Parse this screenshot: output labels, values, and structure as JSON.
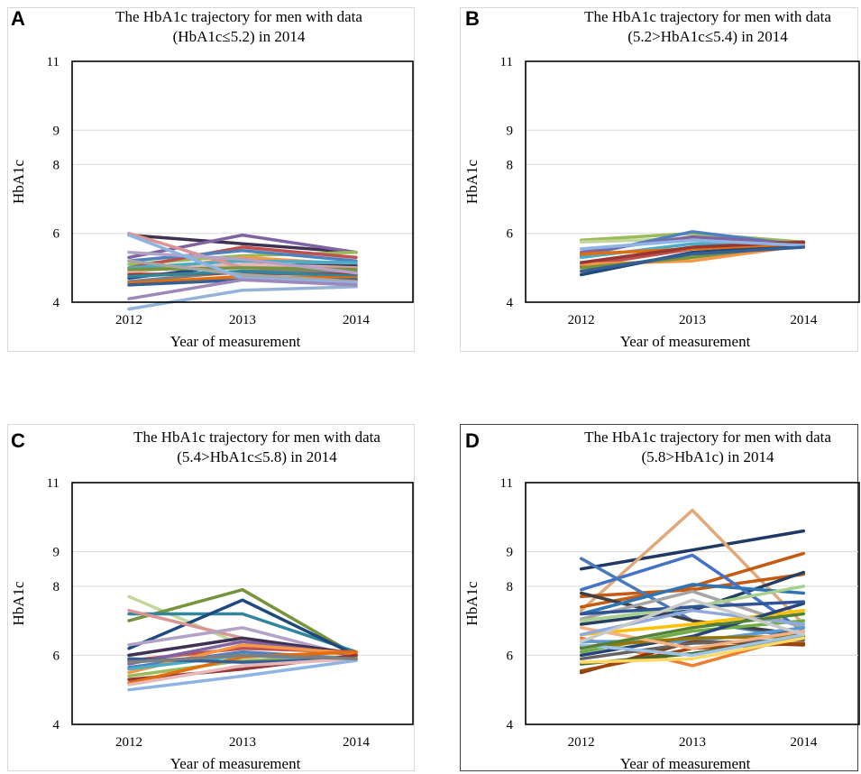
{
  "panels": [
    {
      "letter": "A",
      "title_line1": "The HbA1c trajectory for men with data",
      "title_line2": "(HbA1c≤5.2)  in 2014"
    },
    {
      "letter": "B",
      "title_line1": "The HbA1c trajectory for men with data",
      "title_line2": "(5.2>HbA1c≤5.4)  in 2014"
    },
    {
      "letter": "C",
      "title_line1": "The HbA1c trajectory for men with data",
      "title_line2": "(5.4>HbA1c≤5.8)  in 2014"
    },
    {
      "letter": "D",
      "title_line1": "The HbA1c trajectory for men with data",
      "title_line2": "(5.8>HbA1c)  in 2014"
    }
  ],
  "chart_data": [
    {
      "type": "line",
      "title": "The HbA1c trajectory for men with data (HbA1c≤5.2)  in 2014",
      "xlabel": "Year of measurement",
      "ylabel": "HbA1c",
      "categories": [
        "2012",
        "2013",
        "2014"
      ],
      "yticks": [
        "4",
        "6",
        "8",
        "9",
        "11"
      ],
      "ylim": [
        4,
        11
      ],
      "grid": true,
      "series": [
        {
          "color": "#403152",
          "values": [
            5.95,
            5.7,
            5.45
          ]
        },
        {
          "color": "#8064a2",
          "values": [
            5.3,
            5.95,
            5.45
          ]
        },
        {
          "color": "#9bbb59",
          "values": [
            5.1,
            5.35,
            5.45
          ]
        },
        {
          "color": "#c0504d",
          "values": [
            5.0,
            5.6,
            5.3
          ]
        },
        {
          "color": "#4f81bd",
          "values": [
            5.2,
            5.5,
            5.2
          ]
        },
        {
          "color": "#f79646",
          "values": [
            4.85,
            5.3,
            5.1
          ]
        },
        {
          "color": "#4bacc6",
          "values": [
            5.0,
            5.2,
            5.15
          ]
        },
        {
          "color": "#1f497d",
          "values": [
            4.7,
            5.1,
            5.05
          ]
        },
        {
          "color": "#e6b9b8",
          "values": [
            4.9,
            5.1,
            5.0
          ]
        },
        {
          "color": "#d99694",
          "values": [
            6.0,
            5.0,
            5.0
          ]
        },
        {
          "color": "#7f7f7f",
          "values": [
            4.6,
            4.9,
            4.9
          ]
        },
        {
          "color": "#77933c",
          "values": [
            4.95,
            5.0,
            4.95
          ]
        },
        {
          "color": "#953735",
          "values": [
            4.8,
            4.85,
            4.8
          ]
        },
        {
          "color": "#b3a2c7",
          "values": [
            5.45,
            5.25,
            4.85
          ]
        },
        {
          "color": "#31859c",
          "values": [
            4.75,
            4.9,
            4.75
          ]
        },
        {
          "color": "#e46c0a",
          "values": [
            4.55,
            4.75,
            4.7
          ]
        },
        {
          "color": "#376092",
          "values": [
            4.5,
            4.65,
            4.65
          ]
        },
        {
          "color": "#a6a6a6",
          "values": [
            5.2,
            4.8,
            4.6
          ]
        },
        {
          "color": "#8eb4e3",
          "values": [
            5.95,
            4.7,
            4.55
          ]
        },
        {
          "color": "#95b3d7",
          "values": [
            3.8,
            4.35,
            4.45
          ]
        },
        {
          "color": "#9e87b9",
          "values": [
            4.1,
            4.65,
            4.5
          ]
        }
      ]
    },
    {
      "type": "line",
      "title": "The HbA1c trajectory for men with data (5.2>HbA1c≤5.4)  in 2014",
      "xlabel": "Year of measurement",
      "ylabel": "HbA1c",
      "categories": [
        "2012",
        "2013",
        "2014"
      ],
      "yticks": [
        "4",
        "6",
        "8",
        "9",
        "11"
      ],
      "ylim": [
        4,
        11
      ],
      "grid": true,
      "series": [
        {
          "color": "#9bbb59",
          "values": [
            5.8,
            6.0,
            5.75
          ]
        },
        {
          "color": "#c3d69b",
          "values": [
            5.75,
            5.85,
            5.7
          ]
        },
        {
          "color": "#4f81bd",
          "values": [
            5.35,
            6.05,
            5.65
          ]
        },
        {
          "color": "#8064a2",
          "values": [
            5.45,
            5.9,
            5.7
          ]
        },
        {
          "color": "#c0504d",
          "values": [
            5.05,
            5.55,
            5.75
          ]
        },
        {
          "color": "#4bacc6",
          "values": [
            5.3,
            5.7,
            5.7
          ]
        },
        {
          "color": "#f79646",
          "values": [
            5.1,
            5.2,
            5.65
          ]
        },
        {
          "color": "#77933c",
          "values": [
            5.0,
            5.3,
            5.7
          ]
        },
        {
          "color": "#1f497d",
          "values": [
            4.8,
            5.45,
            5.65
          ]
        },
        {
          "color": "#e46c0a",
          "values": [
            5.4,
            5.55,
            5.7
          ]
        },
        {
          "color": "#953735",
          "values": [
            5.15,
            5.6,
            5.75
          ]
        },
        {
          "color": "#8eb4e3",
          "values": [
            5.55,
            5.8,
            5.65
          ]
        },
        {
          "color": "#376092",
          "values": [
            4.9,
            5.4,
            5.6
          ]
        }
      ]
    },
    {
      "type": "line",
      "title": "The HbA1c trajectory for men with data (5.4>HbA1c≤5.8)  in 2014",
      "xlabel": "Year of measurement",
      "ylabel": "HbA1c",
      "categories": [
        "2012",
        "2013",
        "2014"
      ],
      "yticks": [
        "4",
        "6",
        "8",
        "9",
        "11"
      ],
      "ylim": [
        4,
        11
      ],
      "grid": true,
      "series": [
        {
          "color": "#c3d69b",
          "values": [
            7.7,
            6.3,
            6.0
          ]
        },
        {
          "color": "#77933c",
          "values": [
            7.0,
            7.9,
            6.0
          ]
        },
        {
          "color": "#31859c",
          "values": [
            7.2,
            7.2,
            6.1
          ]
        },
        {
          "color": "#1f497d",
          "values": [
            6.2,
            7.6,
            6.0
          ]
        },
        {
          "color": "#d99694",
          "values": [
            7.3,
            6.5,
            6.0
          ]
        },
        {
          "color": "#b3a2c7",
          "values": [
            6.3,
            6.8,
            5.95
          ]
        },
        {
          "color": "#403152",
          "values": [
            6.0,
            6.5,
            6.05
          ]
        },
        {
          "color": "#c0504d",
          "values": [
            5.85,
            6.2,
            6.1
          ]
        },
        {
          "color": "#8064a2",
          "values": [
            5.75,
            6.4,
            6.0
          ]
        },
        {
          "color": "#4f81bd",
          "values": [
            5.65,
            6.1,
            5.9
          ]
        },
        {
          "color": "#f79646",
          "values": [
            5.5,
            6.3,
            6.05
          ]
        },
        {
          "color": "#9bbb59",
          "values": [
            5.4,
            5.85,
            5.95
          ]
        },
        {
          "color": "#953735",
          "values": [
            5.3,
            5.6,
            6.0
          ]
        },
        {
          "color": "#e46c0a",
          "values": [
            5.2,
            5.95,
            6.1
          ]
        },
        {
          "color": "#4bacc6",
          "values": [
            5.6,
            6.0,
            5.85
          ]
        },
        {
          "color": "#376092",
          "values": [
            5.9,
            5.8,
            5.9
          ]
        },
        {
          "color": "#e6b9b8",
          "values": [
            5.15,
            5.7,
            5.9
          ]
        },
        {
          "color": "#8eb4e3",
          "values": [
            5.0,
            5.4,
            5.85
          ]
        },
        {
          "color": "#7f7f7f",
          "values": [
            5.8,
            6.0,
            5.9
          ]
        }
      ]
    },
    {
      "type": "line",
      "title": "The HbA1c trajectory for men with data (5.8>HbA1c)  in 2014",
      "xlabel": "Year of measurement",
      "ylabel": "HbA1c",
      "categories": [
        "2012",
        "2013",
        "2014"
      ],
      "yticks": [
        "4",
        "6",
        "8",
        "9",
        "11"
      ],
      "ylim": [
        4,
        11
      ],
      "grid": true,
      "series": [
        {
          "color": "#1f3864",
          "values": [
            8.5,
            9.05,
            9.6
          ]
        },
        {
          "color": "#e1a97a",
          "values": [
            7.3,
            10.2,
            6.9
          ]
        },
        {
          "color": "#c55a11",
          "values": [
            7.4,
            8.0,
            8.95
          ]
        },
        {
          "color": "#c65911",
          "values": [
            7.7,
            7.9,
            8.35
          ]
        },
        {
          "color": "#243f60",
          "values": [
            6.9,
            7.3,
            8.4
          ]
        },
        {
          "color": "#4472c4",
          "values": [
            7.9,
            8.9,
            6.7
          ]
        },
        {
          "color": "#4a7ab8",
          "values": [
            8.8,
            7.0,
            6.5
          ]
        },
        {
          "color": "#404040",
          "values": [
            7.8,
            7.0,
            6.6
          ]
        },
        {
          "color": "#2e75b6",
          "values": [
            7.2,
            8.05,
            7.8
          ]
        },
        {
          "color": "#a5a5a5",
          "values": [
            7.05,
            7.85,
            6.8
          ]
        },
        {
          "color": "#ed7d31",
          "values": [
            6.5,
            5.7,
            6.6
          ]
        },
        {
          "color": "#ffc000",
          "values": [
            6.6,
            6.9,
            7.3
          ]
        },
        {
          "color": "#70ad47",
          "values": [
            6.1,
            6.7,
            7.0
          ]
        },
        {
          "color": "#5b9bd5",
          "values": [
            6.4,
            6.4,
            6.8
          ]
        },
        {
          "color": "#264478",
          "values": [
            6.0,
            6.55,
            7.5
          ]
        },
        {
          "color": "#843c0c",
          "values": [
            5.5,
            6.4,
            6.3
          ]
        },
        {
          "color": "#9e480e",
          "values": [
            5.55,
            6.2,
            6.35
          ]
        },
        {
          "color": "#636363",
          "values": [
            5.9,
            6.35,
            6.45
          ]
        },
        {
          "color": "#997300",
          "values": [
            6.25,
            6.5,
            6.55
          ]
        },
        {
          "color": "#43682b",
          "values": [
            5.75,
            6.05,
            6.55
          ]
        },
        {
          "color": "#9dc3e6",
          "values": [
            6.3,
            6.0,
            6.6
          ]
        },
        {
          "color": "#f4b183",
          "values": [
            6.8,
            6.2,
            6.7
          ]
        },
        {
          "color": "#ffd966",
          "values": [
            5.8,
            5.9,
            6.5
          ]
        },
        {
          "color": "#8faadc",
          "values": [
            6.6,
            7.3,
            6.9
          ]
        },
        {
          "color": "#a9d18e",
          "values": [
            7.0,
            7.4,
            8.0
          ]
        },
        {
          "color": "#2f5597",
          "values": [
            7.2,
            7.4,
            7.55
          ]
        },
        {
          "color": "#548235",
          "values": [
            6.2,
            6.8,
            7.2
          ]
        },
        {
          "color": "#c9c9c9",
          "values": [
            6.4,
            7.6,
            6.6
          ]
        }
      ]
    }
  ]
}
